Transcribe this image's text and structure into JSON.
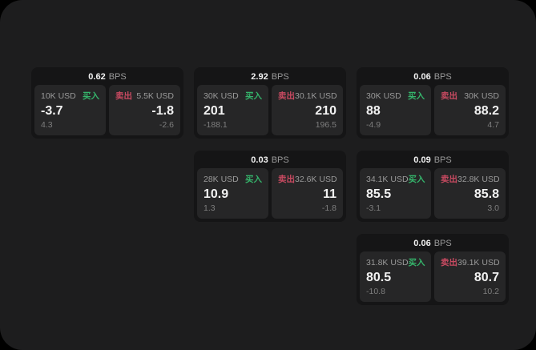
{
  "labels": {
    "buy": "买入",
    "sell": "卖出",
    "bps_suffix": "BPS"
  },
  "colors": {
    "page_bg": "#1d1d1e",
    "card_bg": "#151516",
    "panel_bg": "#262627",
    "buy": "#35b46b",
    "sell": "#c84a61",
    "text_primary": "#f2f2f2",
    "text_secondary": "#9a9a9a",
    "text_muted": "#7e7e7e"
  },
  "cards": [
    {
      "bps_value": "0.62",
      "row": 1,
      "col": 1,
      "buy": {
        "amount": "10K USD",
        "price": "-3.7",
        "change": "4.3"
      },
      "sell": {
        "amount": "5.5K USD",
        "price": "-1.8",
        "change": "-2.6"
      }
    },
    {
      "bps_value": "2.92",
      "row": 1,
      "col": 2,
      "buy": {
        "amount": "30K USD",
        "price": "201",
        "change": "-188.1"
      },
      "sell": {
        "amount": "30.1K USD",
        "price": "210",
        "change": "196.5"
      }
    },
    {
      "bps_value": "0.06",
      "row": 1,
      "col": 3,
      "buy": {
        "amount": "30K USD",
        "price": "88",
        "change": "-4.9"
      },
      "sell": {
        "amount": "30K USD",
        "price": "88.2",
        "change": "4.7"
      }
    },
    {
      "bps_value": "0.03",
      "row": 2,
      "col": 2,
      "buy": {
        "amount": "28K USD",
        "price": "10.9",
        "change": "1.3"
      },
      "sell": {
        "amount": "32.6K USD",
        "price": "11",
        "change": "-1.8"
      }
    },
    {
      "bps_value": "0.09",
      "row": 2,
      "col": 3,
      "buy": {
        "amount": "34.1K USD",
        "price": "85.5",
        "change": "-3.1"
      },
      "sell": {
        "amount": "32.8K USD",
        "price": "85.8",
        "change": "3.0"
      }
    },
    {
      "bps_value": "0.06",
      "row": 3,
      "col": 3,
      "buy": {
        "amount": "31.8K USD",
        "price": "80.5",
        "change": "-10.8"
      },
      "sell": {
        "amount": "39.1K USD",
        "price": "80.7",
        "change": "10.2"
      }
    }
  ]
}
